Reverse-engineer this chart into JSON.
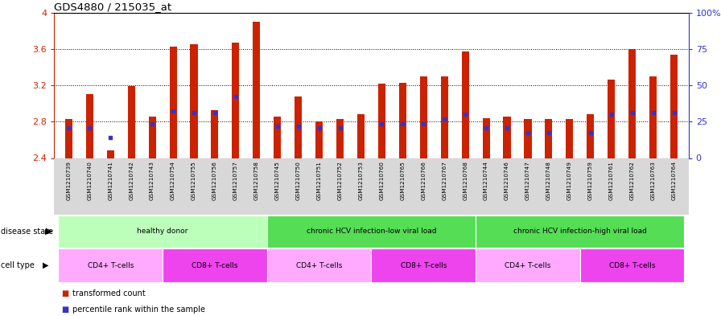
{
  "title": "GDS4880 / 215035_at",
  "samples": [
    "GSM1210739",
    "GSM1210740",
    "GSM1210741",
    "GSM1210742",
    "GSM1210743",
    "GSM1210754",
    "GSM1210755",
    "GSM1210756",
    "GSM1210757",
    "GSM1210758",
    "GSM1210745",
    "GSM1210750",
    "GSM1210751",
    "GSM1210752",
    "GSM1210753",
    "GSM1210760",
    "GSM1210765",
    "GSM1210766",
    "GSM1210767",
    "GSM1210768",
    "GSM1210744",
    "GSM1210746",
    "GSM1210747",
    "GSM1210748",
    "GSM1210749",
    "GSM1210759",
    "GSM1210761",
    "GSM1210762",
    "GSM1210763",
    "GSM1210764"
  ],
  "bar_values": [
    2.83,
    3.1,
    2.48,
    3.19,
    2.86,
    3.63,
    3.65,
    2.93,
    3.67,
    3.9,
    2.86,
    3.08,
    2.8,
    2.83,
    2.88,
    3.22,
    3.23,
    3.3,
    3.3,
    3.57,
    2.84,
    2.86,
    2.83,
    2.83,
    2.83,
    2.88,
    3.26,
    3.6,
    3.3,
    3.54
  ],
  "blue_dot_values": [
    2.73,
    2.73,
    2.63,
    null,
    2.78,
    2.92,
    2.9,
    2.9,
    3.08,
    null,
    2.75,
    2.75,
    2.73,
    2.73,
    null,
    2.78,
    2.78,
    2.78,
    2.83,
    2.88,
    2.73,
    2.73,
    2.68,
    2.68,
    null,
    2.68,
    2.88,
    2.9,
    2.9,
    2.9
  ],
  "ymin": 2.4,
  "ymax": 4.0,
  "yticks": [
    2.4,
    2.8,
    3.2,
    3.6,
    4.0
  ],
  "ytick_labels": [
    "2.4",
    "2.8",
    "3.2",
    "3.6",
    "4"
  ],
  "right_yticks": [
    0,
    25,
    50,
    75,
    100
  ],
  "right_ytick_labels": [
    "0",
    "25",
    "50",
    "75",
    "100%"
  ],
  "bar_color": "#cc2200",
  "dot_color": "#3333cc",
  "bg_color": "#ffffff",
  "disease_ranges": [
    {
      "label": "healthy donor",
      "start": 0,
      "end": 9,
      "color": "#bbffbb"
    },
    {
      "label": "chronic HCV infection-low viral load",
      "start": 10,
      "end": 19,
      "color": "#55dd55"
    },
    {
      "label": "chronic HCV infection-high viral load",
      "start": 20,
      "end": 29,
      "color": "#55dd55"
    }
  ],
  "cell_ranges": [
    {
      "label": "CD4+ T-cells",
      "start": 0,
      "end": 4,
      "color": "#ffaaff"
    },
    {
      "label": "CD8+ T-cells",
      "start": 5,
      "end": 9,
      "color": "#ee44ee"
    },
    {
      "label": "CD4+ T-cells",
      "start": 10,
      "end": 14,
      "color": "#ffaaff"
    },
    {
      "label": "CD8+ T-cells",
      "start": 15,
      "end": 19,
      "color": "#ee44ee"
    },
    {
      "label": "CD4+ T-cells",
      "start": 20,
      "end": 24,
      "color": "#ffaaff"
    },
    {
      "label": "CD8+ T-cells",
      "start": 25,
      "end": 29,
      "color": "#ee44ee"
    }
  ],
  "grid_lines": [
    2.8,
    3.2,
    3.6
  ],
  "bar_width": 0.35,
  "legend_items": [
    {
      "label": "transformed count",
      "color": "#cc2200"
    },
    {
      "label": "percentile rank within the sample",
      "color": "#3333cc"
    }
  ]
}
